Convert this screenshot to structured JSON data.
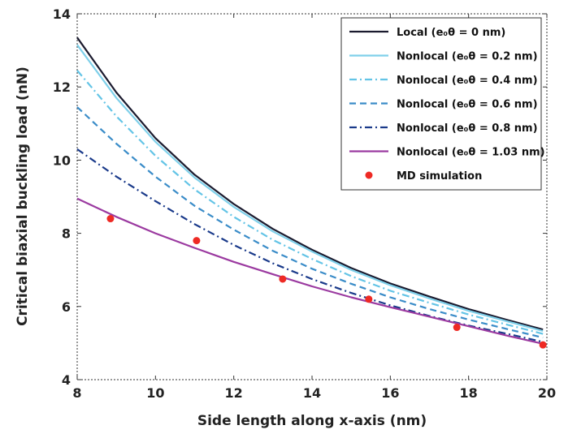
{
  "chart_data": {
    "type": "line",
    "xlabel": "Side length along x-axis (nm)",
    "ylabel": "Critical biaxial buckling load (nN)",
    "xlim": [
      8,
      20
    ],
    "ylim": [
      4,
      14
    ],
    "xticks": [
      "8",
      "10",
      "12",
      "14",
      "16",
      "18",
      "20"
    ],
    "yticks": [
      "4",
      "6",
      "8",
      "10",
      "12",
      "14"
    ],
    "grid": false,
    "legend_position": "top-right",
    "x": [
      8,
      9,
      10,
      11,
      12,
      13,
      14,
      15,
      16,
      17,
      18,
      19,
      19.9
    ],
    "series": [
      {
        "name": "Local  (e₀θ = 0 nm)",
        "color": "#1a1a2e",
        "style": "solid",
        "values": [
          13.35,
          11.85,
          10.6,
          9.6,
          8.8,
          8.12,
          7.55,
          7.05,
          6.63,
          6.27,
          5.93,
          5.63,
          5.37
        ]
      },
      {
        "name": "Nonlocal  (e₀θ = 0.2 nm)",
        "color": "#7fd0ea",
        "style": "solid",
        "values": [
          13.15,
          11.7,
          10.5,
          9.52,
          8.72,
          8.05,
          7.5,
          7.0,
          6.58,
          6.22,
          5.88,
          5.59,
          5.33
        ]
      },
      {
        "name": "Nonlocal  (e₀θ = 0.4 nm)",
        "color": "#63c4e6",
        "style": "dashdot",
        "values": [
          12.45,
          11.2,
          10.12,
          9.2,
          8.45,
          7.82,
          7.3,
          6.83,
          6.43,
          6.1,
          5.78,
          5.5,
          5.25
        ]
      },
      {
        "name": "Nonlocal  (e₀θ = 0.6 nm)",
        "color": "#3a8cc8",
        "style": "dashed",
        "values": [
          11.45,
          10.45,
          9.55,
          8.75,
          8.1,
          7.52,
          7.03,
          6.62,
          6.25,
          5.93,
          5.64,
          5.38,
          5.15
        ]
      },
      {
        "name": "Nonlocal  (e₀θ = 0.8 nm)",
        "color": "#1a3a8a",
        "style": "dashdot",
        "values": [
          10.3,
          9.55,
          8.88,
          8.25,
          7.68,
          7.18,
          6.75,
          6.37,
          6.03,
          5.74,
          5.48,
          5.25,
          5.03
        ]
      },
      {
        "name": "Nonlocal  (e₀θ = 1.03 nm)",
        "color": "#9b3aa0",
        "style": "solid",
        "values": [
          8.95,
          8.45,
          8.0,
          7.6,
          7.22,
          6.88,
          6.55,
          6.25,
          5.98,
          5.72,
          5.46,
          5.2,
          4.98
        ]
      }
    ],
    "scatter": {
      "name": "MD simulation",
      "color": "#ee2a24",
      "points": [
        {
          "x": 8.85,
          "y": 8.4
        },
        {
          "x": 11.05,
          "y": 7.8
        },
        {
          "x": 13.25,
          "y": 6.75
        },
        {
          "x": 15.45,
          "y": 6.2
        },
        {
          "x": 17.7,
          "y": 5.43
        },
        {
          "x": 19.9,
          "y": 4.95
        }
      ]
    }
  }
}
